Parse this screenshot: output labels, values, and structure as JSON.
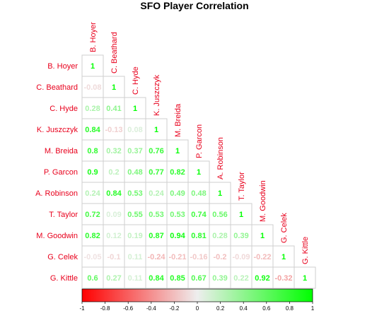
{
  "chart_data": {
    "type": "heatmap",
    "title": "SFO Player Correlation",
    "label_color": "#e8001c",
    "players": [
      "B. Hoyer",
      "C. Beathard",
      "C. Hyde",
      "K. Juszczyk",
      "M. Breida",
      "P. Garcon",
      "A. Robinson",
      "T. Taylor",
      "M. Goodwin",
      "G. Celek",
      "G. Kittle"
    ],
    "matrix": [
      [
        1
      ],
      [
        -0.08,
        1
      ],
      [
        0.28,
        0.41,
        1
      ],
      [
        0.84,
        -0.13,
        0.08,
        1
      ],
      [
        0.8,
        0.32,
        0.37,
        0.76,
        1
      ],
      [
        0.9,
        0.2,
        0.48,
        0.77,
        0.82,
        1
      ],
      [
        0.24,
        0.84,
        0.53,
        0.24,
        0.49,
        0.48,
        1
      ],
      [
        0.72,
        0.09,
        0.55,
        0.53,
        0.53,
        0.74,
        0.56,
        1
      ],
      [
        0.82,
        0.12,
        0.19,
        0.87,
        0.94,
        0.81,
        0.28,
        0.39,
        1
      ],
      [
        -0.05,
        -0.1,
        0.11,
        -0.24,
        -0.21,
        -0.16,
        -0.2,
        -0.09,
        -0.22,
        1
      ],
      [
        0.6,
        0.27,
        0.11,
        0.84,
        0.85,
        0.67,
        0.39,
        0.22,
        0.92,
        -0.32,
        1
      ]
    ],
    "colorbar": {
      "low_color": "#ff0000",
      "mid_color": "#eeeeee",
      "high_color": "#00ff00",
      "range": [
        -1,
        1
      ],
      "ticks": [
        "-1",
        "-0.8",
        "-0.6",
        "-0.4",
        "-0.2",
        "0",
        "0.2",
        "0.4",
        "0.6",
        "0.8",
        "1"
      ]
    }
  }
}
